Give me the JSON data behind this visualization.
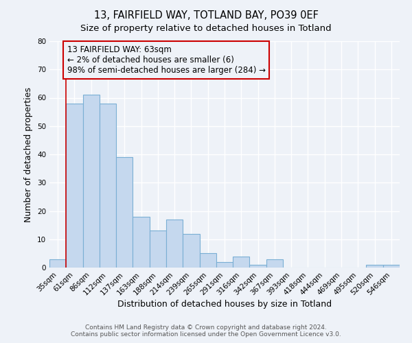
{
  "title": "13, FAIRFIELD WAY, TOTLAND BAY, PO39 0EF",
  "subtitle": "Size of property relative to detached houses in Totland",
  "xlabel": "Distribution of detached houses by size in Totland",
  "ylabel": "Number of detached properties",
  "bar_labels": [
    "35sqm",
    "61sqm",
    "86sqm",
    "112sqm",
    "137sqm",
    "163sqm",
    "188sqm",
    "214sqm",
    "239sqm",
    "265sqm",
    "291sqm",
    "316sqm",
    "342sqm",
    "367sqm",
    "393sqm",
    "418sqm",
    "444sqm",
    "469sqm",
    "495sqm",
    "520sqm",
    "546sqm"
  ],
  "bar_values": [
    3,
    58,
    61,
    58,
    39,
    18,
    13,
    17,
    12,
    5,
    2,
    4,
    1,
    3,
    0,
    0,
    0,
    0,
    0,
    1,
    1
  ],
  "bar_color": "#c5d8ee",
  "bar_edge_color": "#7aafd4",
  "ylim": [
    0,
    80
  ],
  "yticks": [
    0,
    10,
    20,
    30,
    40,
    50,
    60,
    70,
    80
  ],
  "vline_x": 1.5,
  "vline_color": "#cc0000",
  "annotation_box_text": "13 FAIRFIELD WAY: 63sqm\n← 2% of detached houses are smaller (6)\n98% of semi-detached houses are larger (284) →",
  "annotation_box_edge_color": "#cc0000",
  "footer_line1": "Contains HM Land Registry data © Crown copyright and database right 2024.",
  "footer_line2": "Contains public sector information licensed under the Open Government Licence v3.0.",
  "background_color": "#eef2f8",
  "grid_color": "#ffffff",
  "title_fontsize": 10.5,
  "subtitle_fontsize": 9.5,
  "axis_label_fontsize": 9,
  "tick_fontsize": 7.5,
  "annotation_fontsize": 8.5,
  "footer_fontsize": 6.5
}
